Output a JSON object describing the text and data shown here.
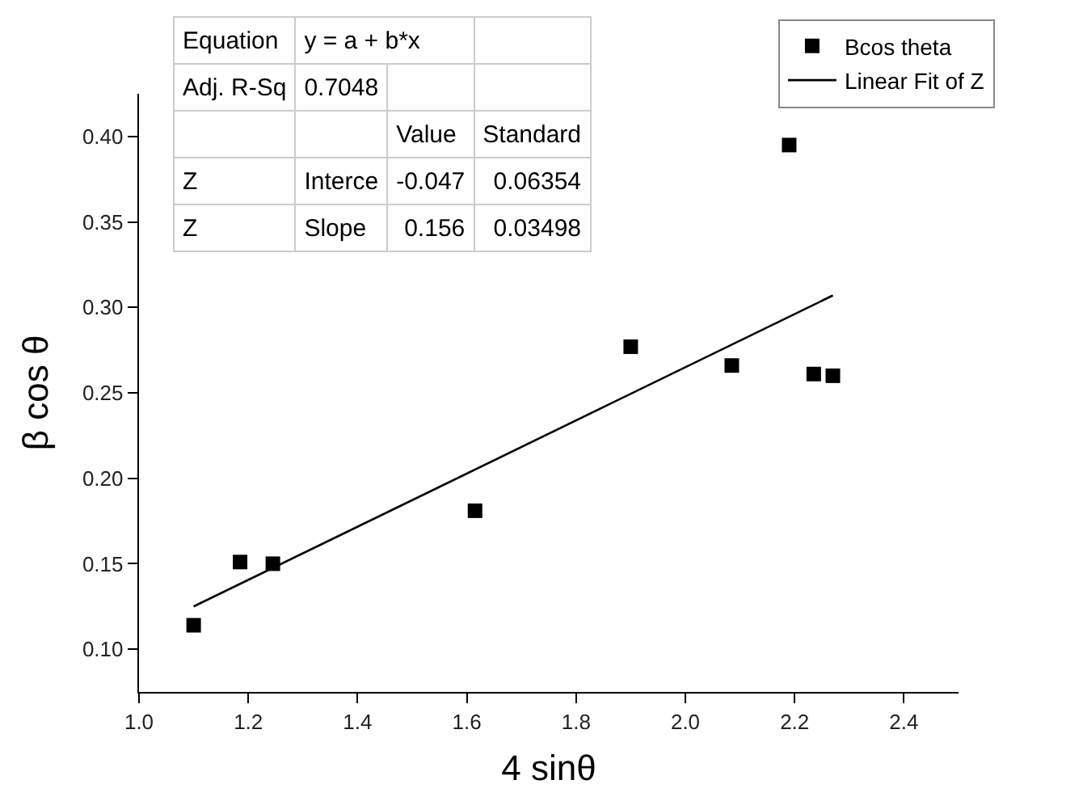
{
  "chart_data": {
    "type": "scatter",
    "xlabel": "4 sinθ",
    "ylabel": "β cos θ",
    "xlim": [
      1.0,
      2.5
    ],
    "ylim": [
      0.075,
      0.425
    ],
    "xticks": [
      {
        "value": 1.0,
        "label": "1.0"
      },
      1.2,
      1.4,
      1.6,
      1.8,
      {
        "value": 2.0,
        "label": "2.0"
      },
      2.2,
      2.4
    ],
    "yticks": [
      {
        "value": 0.1,
        "label": "0.10"
      },
      0.15,
      {
        "value": 0.2,
        "label": "0.20"
      },
      0.25,
      {
        "value": 0.3,
        "label": "0.30"
      },
      0.35,
      {
        "value": 0.4,
        "label": "0.40"
      }
    ],
    "grid": false,
    "legend": "top right",
    "series": [
      {
        "name": "Bcos theta",
        "marker": "square",
        "color": "#000000",
        "x": [
          1.1,
          1.185,
          1.245,
          1.615,
          1.9,
          2.085,
          2.19,
          2.235,
          2.27
        ],
        "values": [
          0.114,
          0.151,
          0.15,
          0.181,
          0.277,
          0.266,
          0.395,
          0.261,
          0.26
        ]
      },
      {
        "name": "Linear Fit of Z",
        "type": "line",
        "color": "#000000",
        "line_style": "solid",
        "x": [
          1.1,
          2.27
        ],
        "values": [
          0.125,
          0.307
        ]
      }
    ],
    "annotations": [
      "Equation",
      "y = a + b*x",
      "Adj. R-Sq",
      "0.7048",
      "Value",
      "Standard",
      "Z",
      "Interce",
      "-0.047",
      "0.06354",
      "Z",
      "Slope",
      "0.156",
      "0.03498"
    ]
  }
}
